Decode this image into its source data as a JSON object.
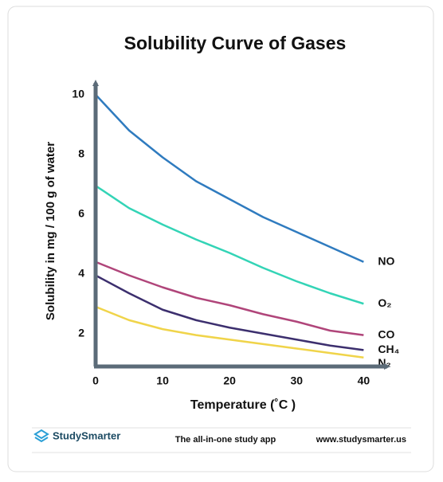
{
  "chart_data": {
    "type": "line",
    "title": "Solubility Curve of Gases",
    "x_label": "Temperature (˚C )",
    "y_label": "Solubility  in mg / 100 g of water",
    "x": [
      0,
      5,
      10,
      15,
      20,
      25,
      30,
      35,
      40
    ],
    "series": [
      {
        "name": "NO",
        "color": "#2f7bbf",
        "values": [
          10,
          8.8,
          7.9,
          7.1,
          6.5,
          5.9,
          5.4,
          4.9,
          4.4
        ]
      },
      {
        "name": "O₂",
        "color": "#33d4b6",
        "values": [
          6.95,
          6.2,
          5.65,
          5.15,
          4.7,
          4.2,
          3.75,
          3.35,
          3.0
        ]
      },
      {
        "name": "CO",
        "color": "#b0457a",
        "values": [
          4.4,
          3.95,
          3.55,
          3.2,
          2.95,
          2.65,
          2.4,
          2.1,
          1.95
        ]
      },
      {
        "name": "CH₄",
        "color": "#3c2f6e",
        "values": [
          3.95,
          3.35,
          2.8,
          2.45,
          2.2,
          2.0,
          1.8,
          1.6,
          1.45
        ]
      },
      {
        "name": "N₂",
        "color": "#f0d44a",
        "values": [
          2.9,
          2.45,
          2.15,
          1.95,
          1.8,
          1.65,
          1.5,
          1.35,
          1.2
        ]
      }
    ],
    "xlim": [
      0,
      44
    ],
    "ylim": [
      0.9,
      10.5
    ],
    "xticks": [
      0,
      10,
      20,
      30,
      40
    ],
    "yticks": [
      2,
      4,
      6,
      8,
      10
    ]
  },
  "footer": {
    "brand": "StudySmarter",
    "tagline": "The all-in-one study app",
    "url": "www.studysmarter.us"
  }
}
